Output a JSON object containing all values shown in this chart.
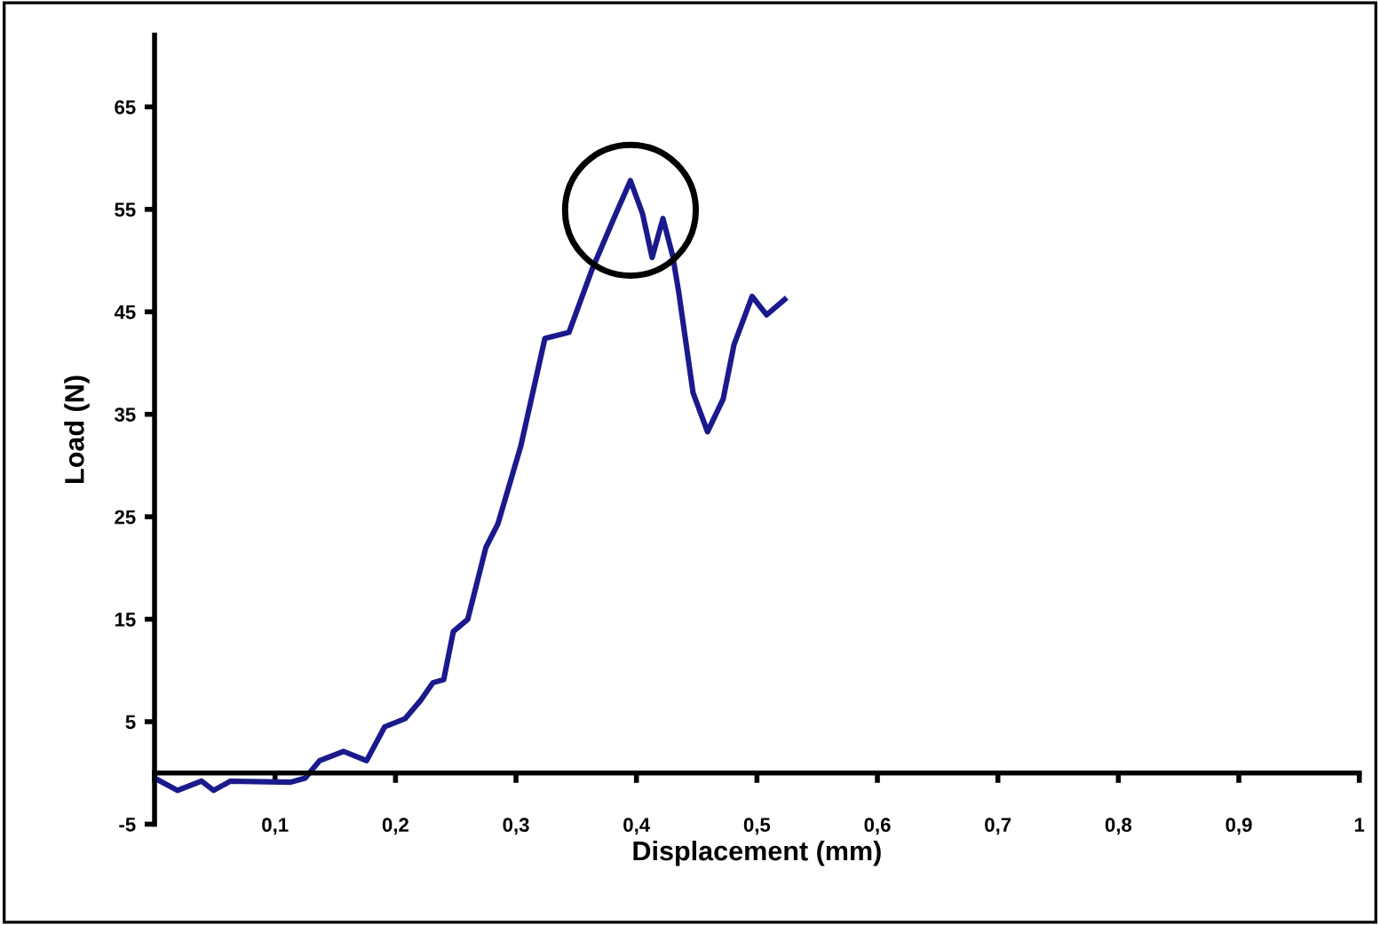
{
  "chart_data": {
    "type": "line",
    "xlabel": "Displacement (mm)",
    "ylabel": "Load (N)",
    "xlim": [
      0,
      1
    ],
    "ylim": [
      -5,
      72
    ],
    "xticks": [
      {
        "value": 0,
        "label": null
      },
      {
        "value": 0.1,
        "label": "0,1"
      },
      {
        "value": 0.2,
        "label": "0,2"
      },
      {
        "value": 0.3,
        "label": "0,3"
      },
      {
        "value": 0.4,
        "label": "0,4"
      },
      {
        "value": 0.5,
        "label": "0,5"
      },
      {
        "value": 0.6,
        "label": "0,6"
      },
      {
        "value": 0.7,
        "label": "0,7"
      },
      {
        "value": 0.8,
        "label": "0,8"
      },
      {
        "value": 0.9,
        "label": "0,9"
      },
      {
        "value": 1,
        "label": "1"
      }
    ],
    "yticks": [
      -5,
      5,
      15,
      25,
      35,
      45,
      55,
      65
    ],
    "grid": false,
    "legend": false,
    "marker": "none",
    "line_style": "solid",
    "series": [
      {
        "color": "#1a1a8c",
        "x": [
          0,
          0.019,
          0.039,
          0.049,
          0.063,
          0.113,
          0.125,
          0.137,
          0.157,
          0.176,
          0.191,
          0.208,
          0.221,
          0.231,
          0.24,
          0.248,
          0.26,
          0.275,
          0.285,
          0.304,
          0.324,
          0.344,
          0.363,
          0.383,
          0.395,
          0.405,
          0.413,
          0.422,
          0.43,
          0.435,
          0.447,
          0.459,
          0.472,
          0.481,
          0.496,
          0.508,
          0.523
        ],
        "values": [
          -0.5,
          -1.7,
          -0.8,
          -1.7,
          -0.8,
          -0.9,
          -0.5,
          1.2,
          2.1,
          1.2,
          4.5,
          5.3,
          7.1,
          8.8,
          9.1,
          13.8,
          15.0,
          22.0,
          24.3,
          31.9,
          42.4,
          43.0,
          49.1,
          54.6,
          57.8,
          54.6,
          50.3,
          54.1,
          50.5,
          47.0,
          37.1,
          33.3,
          36.5,
          41.8,
          46.5,
          44.7,
          46.2
        ]
      }
    ]
  }
}
